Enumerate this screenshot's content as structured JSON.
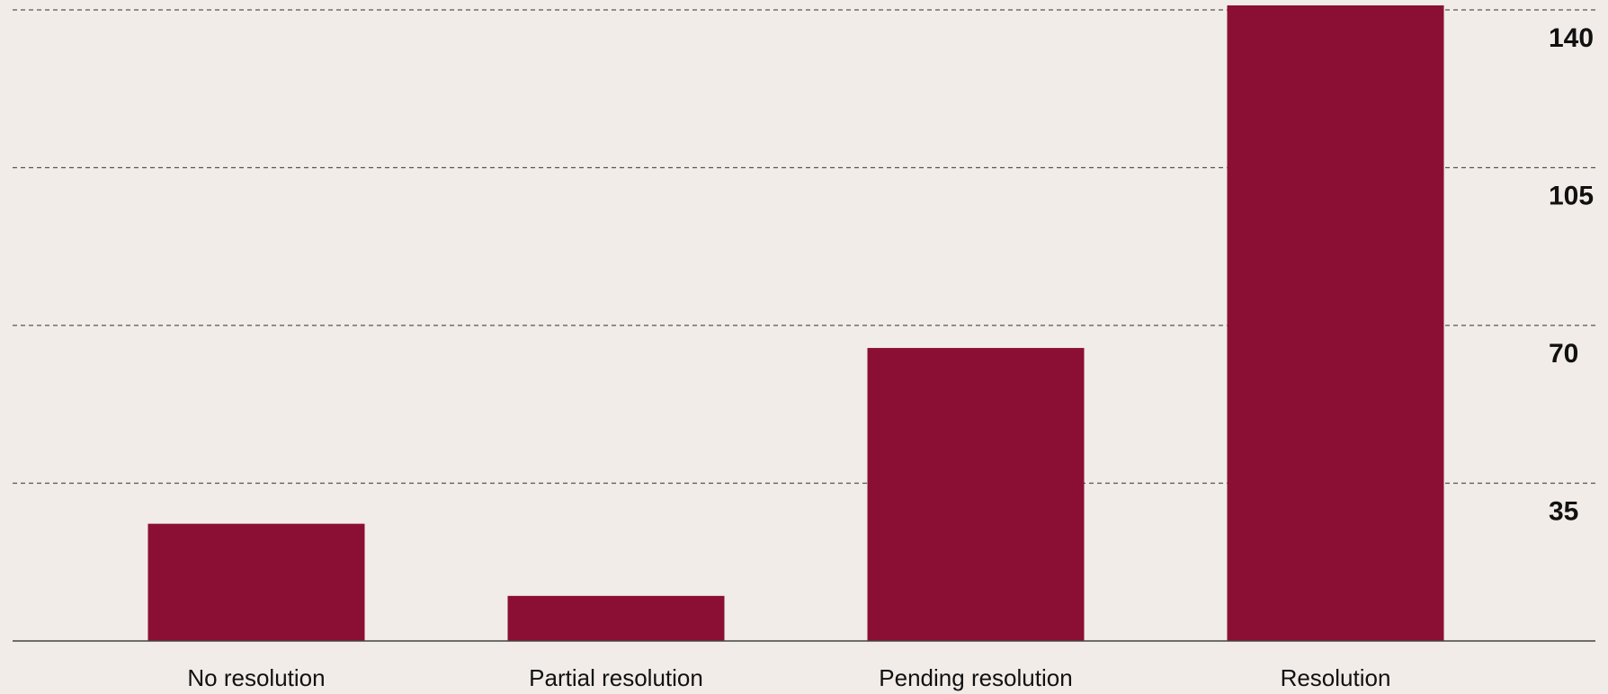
{
  "chart_data": {
    "type": "bar",
    "title": "",
    "xlabel": "",
    "ylabel": "",
    "categories": [
      "No resolution",
      "Partial resolution",
      "Pending resolution",
      "Resolution"
    ],
    "values": [
      26,
      10,
      65,
      141
    ],
    "ylim": [
      0,
      160
    ],
    "yticks": [
      35,
      70,
      105,
      140
    ],
    "ytick_labels": [
      "35",
      "70",
      "105",
      "140"
    ],
    "y_axis_side": "right",
    "grid": true,
    "grid_style": "dashed",
    "legend": "none",
    "bar_color": "#8b0f34",
    "background_color": "#f1ece7"
  }
}
